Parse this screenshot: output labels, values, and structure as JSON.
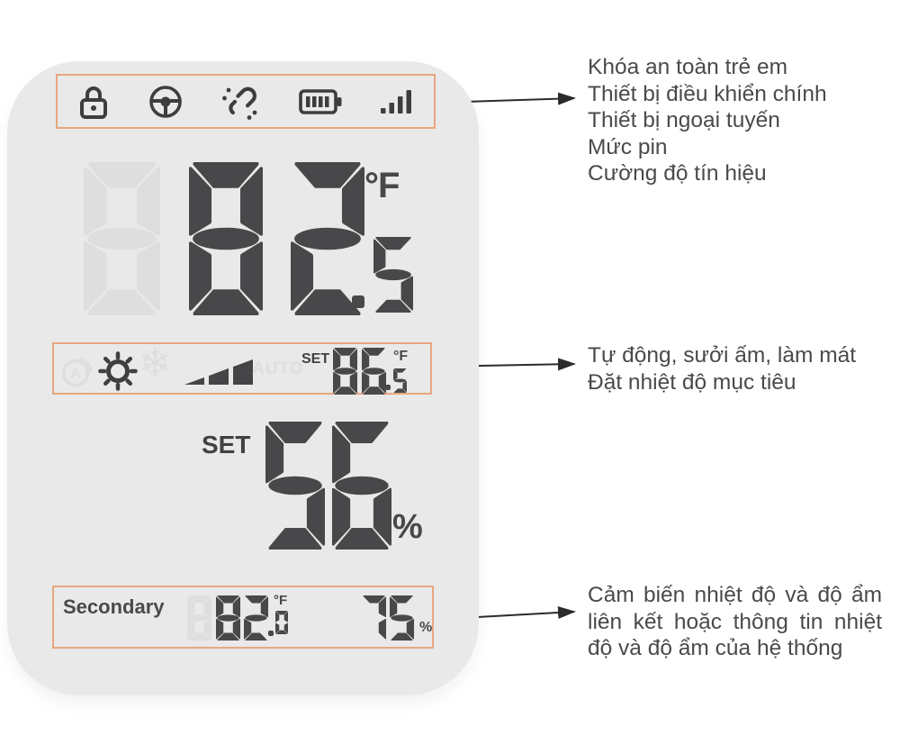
{
  "device": {
    "status_icons": [
      {
        "name": "child-lock-icon"
      },
      {
        "name": "main-controller-icon"
      },
      {
        "name": "device-offline-icon"
      },
      {
        "name": "battery-level-icon"
      },
      {
        "name": "signal-strength-icon"
      }
    ],
    "main_display": {
      "ghost_digit": "8",
      "value_int": "82",
      "value_dec": "5",
      "unit": "°F"
    },
    "mode_row": {
      "auto_icon_letter": "A",
      "auto_ghost_text": "AUTO",
      "set_label": "SET",
      "value_int": "86",
      "value_dec": "5",
      "unit": "°F"
    },
    "humidity_display": {
      "set_label": "SET",
      "value": "56",
      "unit": "%"
    },
    "secondary": {
      "label": "Secondary",
      "ghost_digit": "8",
      "temp_int": "82",
      "temp_dec": "0",
      "temp_unit": "°F",
      "humidity": "75",
      "humidity_unit": "%"
    }
  },
  "annotations": {
    "top": {
      "lines": [
        "Khóa an toàn trẻ em",
        "Thiết bị điều khiển chính",
        "Thiết bị ngoại tuyến",
        "Mức pin",
        "Cường độ tín hiệu"
      ]
    },
    "middle": {
      "lines": [
        "Tự động, sưởi ấm, làm mát",
        "Đặt nhiệt độ mục tiêu"
      ]
    },
    "bottom": {
      "text": "Cảm biến nhiệt độ và độ ẩm liên kết hoặc thông tin nhiệt độ và độ ẩm của hệ thống"
    }
  },
  "colors": {
    "accent": "#e7a77e",
    "seg-dark": "#48484a",
    "seg-ghost": "#dedede",
    "device-bg": "#e9e9e9",
    "text": "#4a4a4a"
  }
}
